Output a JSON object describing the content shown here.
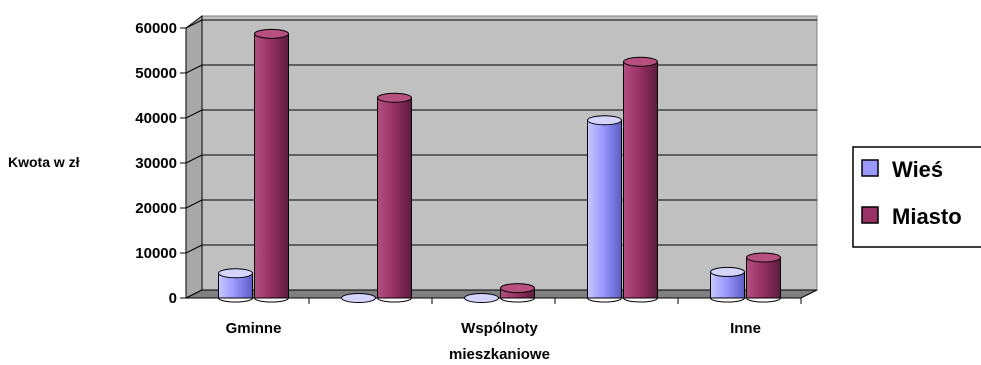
{
  "chart_data": {
    "type": "bar",
    "style": "3d-cylinder",
    "categories": [
      "Gminne",
      "",
      "Wspólnoty mieszkaniowe",
      "",
      "Inne"
    ],
    "category_label_lines": [
      [
        "Gminne"
      ],
      [
        ""
      ],
      [
        "Wspólnoty",
        "mieszkaniowe"
      ],
      [
        ""
      ],
      [
        "Inne"
      ]
    ],
    "series": [
      {
        "name": "Wieś",
        "color": "#9999FF",
        "values": [
          5500,
          0,
          0,
          39500,
          5800
        ]
      },
      {
        "name": "Miasto",
        "color": "#993366",
        "values": [
          58700,
          44500,
          2200,
          52500,
          9000
        ]
      }
    ],
    "ylabel": "Kwota w zł",
    "xlabel": "",
    "ylim": [
      0,
      60000
    ],
    "yticks": [
      0,
      10000,
      20000,
      30000,
      40000,
      50000,
      60000
    ],
    "grid": true,
    "background": "#C0C0C0",
    "legend": "right"
  }
}
